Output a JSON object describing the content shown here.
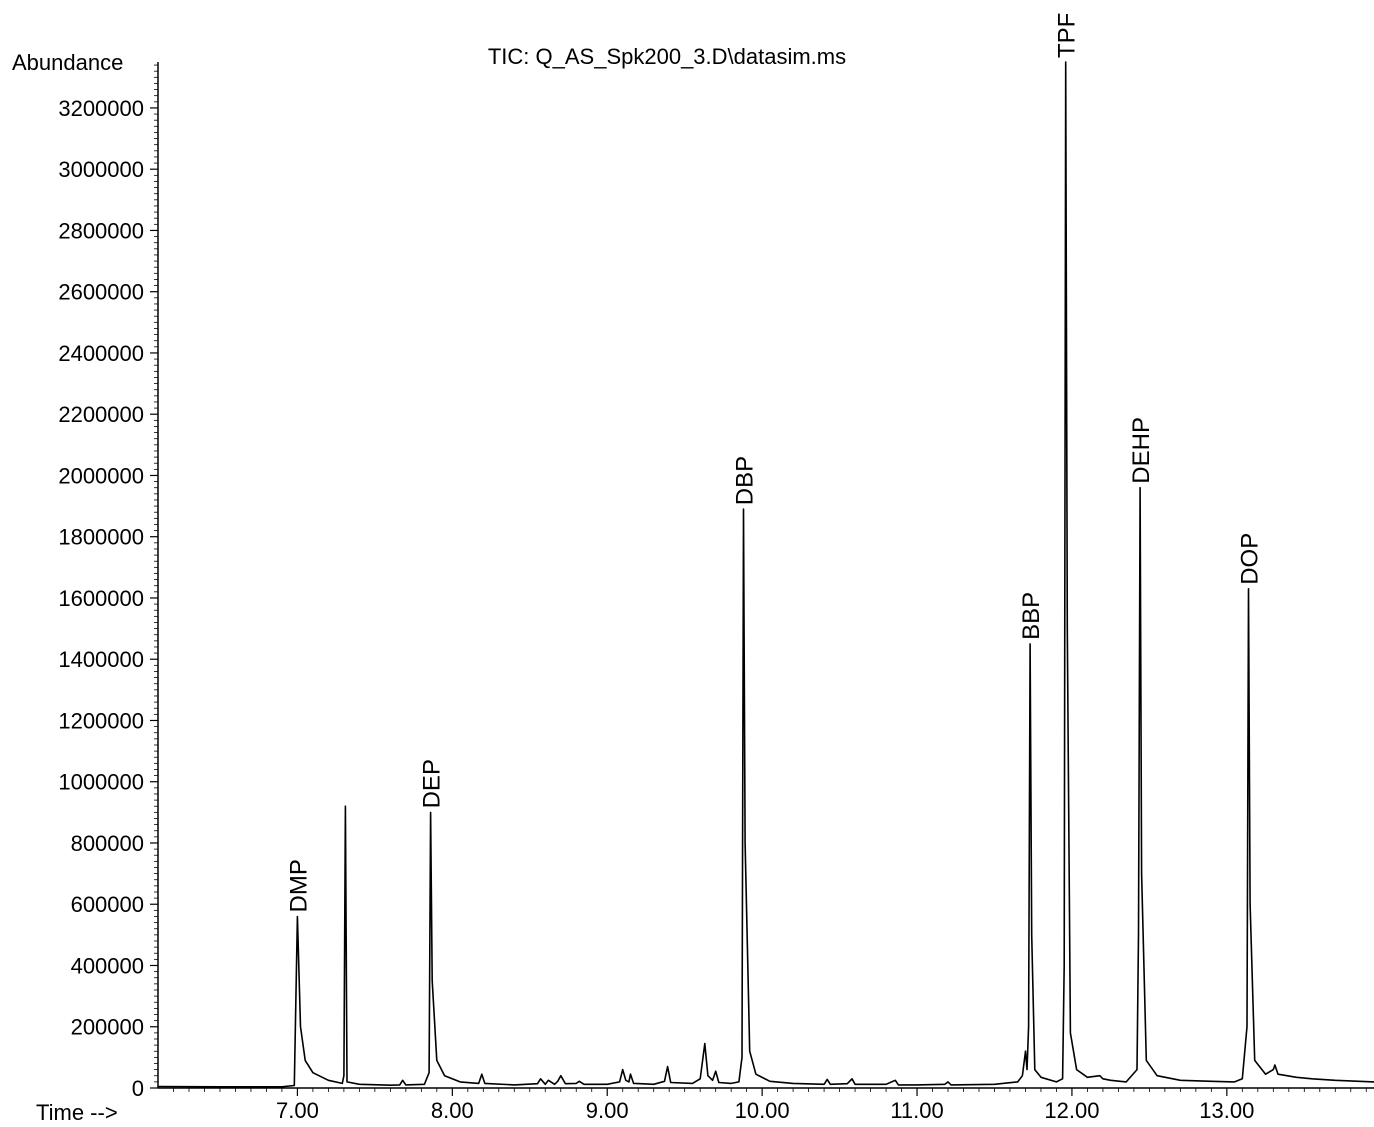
{
  "chart_data": {
    "type": "line",
    "title": "TIC: Q_AS_Spk200_3.D\\datasim.ms",
    "xlabel": "Time -->",
    "ylabel": "Abundance",
    "xlim": [
      6.1,
      13.95
    ],
    "ylim": [
      0,
      3350000
    ],
    "x_ticks": [
      "7.00",
      "8.00",
      "9.00",
      "10.00",
      "11.00",
      "12.00",
      "13.00"
    ],
    "y_ticks": [
      "0",
      "200000",
      "400000",
      "600000",
      "800000",
      "1000000",
      "1200000",
      "1400000",
      "1600000",
      "1800000",
      "2000000",
      "2200000",
      "2400000",
      "2600000",
      "2800000",
      "3000000",
      "3200000"
    ],
    "grid": false,
    "series": [
      {
        "color": "#000000",
        "points": [
          [
            6.1,
            5000
          ],
          [
            6.5,
            4000
          ],
          [
            6.9,
            4000
          ],
          [
            6.98,
            8000
          ],
          [
            7.0,
            560000
          ],
          [
            7.02,
            200000
          ],
          [
            7.05,
            90000
          ],
          [
            7.1,
            50000
          ],
          [
            7.2,
            25000
          ],
          [
            7.29,
            15000
          ],
          [
            7.3,
            40000
          ],
          [
            7.31,
            920000
          ],
          [
            7.32,
            20000
          ],
          [
            7.4,
            12000
          ],
          [
            7.6,
            9000
          ],
          [
            7.66,
            10000
          ],
          [
            7.68,
            25000
          ],
          [
            7.7,
            10000
          ],
          [
            7.82,
            12000
          ],
          [
            7.85,
            50000
          ],
          [
            7.86,
            900000
          ],
          [
            7.87,
            350000
          ],
          [
            7.9,
            90000
          ],
          [
            7.95,
            40000
          ],
          [
            8.05,
            20000
          ],
          [
            8.17,
            15000
          ],
          [
            8.19,
            45000
          ],
          [
            8.21,
            15000
          ],
          [
            8.4,
            10000
          ],
          [
            8.55,
            14000
          ],
          [
            8.57,
            30000
          ],
          [
            8.6,
            12000
          ],
          [
            8.62,
            25000
          ],
          [
            8.66,
            12000
          ],
          [
            8.68,
            22000
          ],
          [
            8.7,
            40000
          ],
          [
            8.73,
            14000
          ],
          [
            8.8,
            15000
          ],
          [
            8.82,
            22000
          ],
          [
            8.85,
            12000
          ],
          [
            9.0,
            12000
          ],
          [
            9.08,
            20000
          ],
          [
            9.1,
            60000
          ],
          [
            9.12,
            25000
          ],
          [
            9.14,
            20000
          ],
          [
            9.15,
            45000
          ],
          [
            9.17,
            15000
          ],
          [
            9.3,
            12000
          ],
          [
            9.37,
            22000
          ],
          [
            9.39,
            70000
          ],
          [
            9.41,
            18000
          ],
          [
            9.55,
            15000
          ],
          [
            9.6,
            30000
          ],
          [
            9.63,
            145000
          ],
          [
            9.65,
            40000
          ],
          [
            9.68,
            25000
          ],
          [
            9.7,
            55000
          ],
          [
            9.72,
            18000
          ],
          [
            9.8,
            15000
          ],
          [
            9.85,
            20000
          ],
          [
            9.87,
            100000
          ],
          [
            9.88,
            1890000
          ],
          [
            9.89,
            800000
          ],
          [
            9.92,
            120000
          ],
          [
            9.96,
            45000
          ],
          [
            10.05,
            22000
          ],
          [
            10.2,
            15000
          ],
          [
            10.4,
            12000
          ],
          [
            10.42,
            28000
          ],
          [
            10.44,
            12000
          ],
          [
            10.55,
            14000
          ],
          [
            10.58,
            30000
          ],
          [
            10.6,
            12000
          ],
          [
            10.8,
            12000
          ],
          [
            10.86,
            25000
          ],
          [
            10.88,
            10000
          ],
          [
            11.0,
            10000
          ],
          [
            11.18,
            12000
          ],
          [
            11.2,
            20000
          ],
          [
            11.22,
            10000
          ],
          [
            11.5,
            12000
          ],
          [
            11.65,
            20000
          ],
          [
            11.68,
            40000
          ],
          [
            11.7,
            120000
          ],
          [
            11.71,
            60000
          ],
          [
            11.72,
            200000
          ],
          [
            11.73,
            1450000
          ],
          [
            11.74,
            500000
          ],
          [
            11.76,
            60000
          ],
          [
            11.8,
            35000
          ],
          [
            11.9,
            20000
          ],
          [
            11.94,
            30000
          ],
          [
            11.95,
            400000
          ],
          [
            11.96,
            3350000
          ],
          [
            11.97,
            1500000
          ],
          [
            11.99,
            180000
          ],
          [
            12.03,
            60000
          ],
          [
            12.1,
            35000
          ],
          [
            12.18,
            40000
          ],
          [
            12.2,
            30000
          ],
          [
            12.25,
            25000
          ],
          [
            12.35,
            20000
          ],
          [
            12.42,
            60000
          ],
          [
            12.43,
            500000
          ],
          [
            12.44,
            1960000
          ],
          [
            12.45,
            700000
          ],
          [
            12.48,
            90000
          ],
          [
            12.55,
            40000
          ],
          [
            12.7,
            25000
          ],
          [
            12.9,
            22000
          ],
          [
            13.05,
            20000
          ],
          [
            13.1,
            30000
          ],
          [
            13.13,
            200000
          ],
          [
            13.14,
            1630000
          ],
          [
            13.15,
            600000
          ],
          [
            13.18,
            90000
          ],
          [
            13.25,
            45000
          ],
          [
            13.3,
            60000
          ],
          [
            13.31,
            75000
          ],
          [
            13.33,
            45000
          ],
          [
            13.45,
            35000
          ],
          [
            13.55,
            30000
          ],
          [
            13.7,
            25000
          ],
          [
            13.95,
            20000
          ]
        ]
      }
    ],
    "peak_labels": [
      {
        "text": "DMP",
        "x": 7.0,
        "y": 560000
      },
      {
        "text": "DEP",
        "x": 7.86,
        "y": 900000
      },
      {
        "text": "DBP",
        "x": 9.88,
        "y": 1890000
      },
      {
        "text": "BBP",
        "x": 11.73,
        "y": 1450000
      },
      {
        "text": "TPF",
        "x": 11.96,
        "y": 3350000
      },
      {
        "text": "DEHP",
        "x": 12.44,
        "y": 1960000
      },
      {
        "text": "DOP",
        "x": 13.14,
        "y": 1630000
      }
    ]
  }
}
